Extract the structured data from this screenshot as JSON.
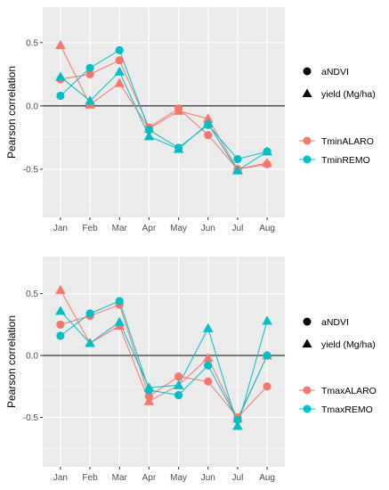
{
  "colors": {
    "panel_bg": "#ebebeb",
    "grid_major": "#ffffff",
    "grid_minor": "#f3f3f3",
    "zero_line": "#000000"
  },
  "chart_data": [
    {
      "type": "line",
      "title": "",
      "xlabel": "",
      "ylabel": "Pearson correlation",
      "categories": [
        "Jan",
        "Feb",
        "Mar",
        "Apr",
        "May",
        "Jun",
        "Jul",
        "Aug"
      ],
      "ylim": [
        -0.88,
        0.78
      ],
      "yticks": [
        -0.5,
        0.0,
        0.5
      ],
      "ytick_labels": [
        "-0.5",
        "0.0",
        "0.5"
      ],
      "reference_line_y": 0,
      "grid": true,
      "legend_position": "right",
      "shape_legend": [
        {
          "label": "aNDVI",
          "shape": "circle"
        },
        {
          "label": "yield (Mg/ha)",
          "shape": "triangle"
        }
      ],
      "color_legend": [
        {
          "label": "TminALARO",
          "color": "#f8766d"
        },
        {
          "label": "TminREMO",
          "color": "#00bfc4"
        }
      ],
      "series": [
        {
          "name": "TminALARO",
          "shape": "circle",
          "color": "#f8766d",
          "values": [
            0.21,
            0.25,
            0.36,
            -0.17,
            -0.02,
            -0.23,
            -0.5,
            -0.46
          ]
        },
        {
          "name": "TminALARO",
          "shape": "triangle",
          "color": "#f8766d",
          "values": [
            0.48,
            0.01,
            0.18,
            -0.18,
            -0.04,
            -0.1,
            -0.5,
            -0.45
          ]
        },
        {
          "name": "TminREMO",
          "shape": "circle",
          "color": "#00bfc4",
          "values": [
            0.08,
            0.3,
            0.44,
            -0.19,
            -0.33,
            -0.15,
            -0.42,
            -0.36
          ]
        },
        {
          "name": "TminREMO",
          "shape": "triangle",
          "color": "#00bfc4",
          "values": [
            0.23,
            0.04,
            0.27,
            -0.24,
            -0.34,
            -0.14,
            -0.51,
            -0.36
          ]
        }
      ]
    },
    {
      "type": "line",
      "title": "",
      "xlabel": "",
      "ylabel": "Pearson correlation",
      "categories": [
        "Jan",
        "Feb",
        "Mar",
        "Apr",
        "May",
        "Jun",
        "Jul",
        "Aug"
      ],
      "ylim": [
        -0.9,
        0.8
      ],
      "yticks": [
        -0.5,
        0.0,
        0.5
      ],
      "ytick_labels": [
        "-0.5",
        "0.0",
        "0.5"
      ],
      "reference_line_y": 0,
      "grid": true,
      "legend_position": "right",
      "shape_legend": [
        {
          "label": "aNDVI",
          "shape": "circle"
        },
        {
          "label": "yield (Mg/ha)",
          "shape": "triangle"
        }
      ],
      "color_legend": [
        {
          "label": "TmaxALARO",
          "color": "#f8766d"
        },
        {
          "label": "TmaxREMO",
          "color": "#00bfc4"
        }
      ],
      "series": [
        {
          "name": "TmaxALARO",
          "shape": "circle",
          "color": "#f8766d",
          "values": [
            0.25,
            0.32,
            0.41,
            -0.33,
            -0.17,
            -0.21,
            -0.5,
            -0.25
          ]
        },
        {
          "name": "TmaxALARO",
          "shape": "triangle",
          "color": "#f8766d",
          "values": [
            0.53,
            0.1,
            0.24,
            -0.37,
            -0.24,
            -0.02,
            -0.51,
            0.0
          ]
        },
        {
          "name": "TmaxREMO",
          "shape": "circle",
          "color": "#00bfc4",
          "values": [
            0.16,
            0.34,
            0.44,
            -0.28,
            -0.32,
            -0.08,
            -0.52,
            0.0
          ]
        },
        {
          "name": "TmaxREMO",
          "shape": "triangle",
          "color": "#00bfc4",
          "values": [
            0.36,
            0.1,
            0.27,
            -0.26,
            -0.24,
            0.22,
            -0.57,
            0.28
          ]
        }
      ]
    }
  ]
}
